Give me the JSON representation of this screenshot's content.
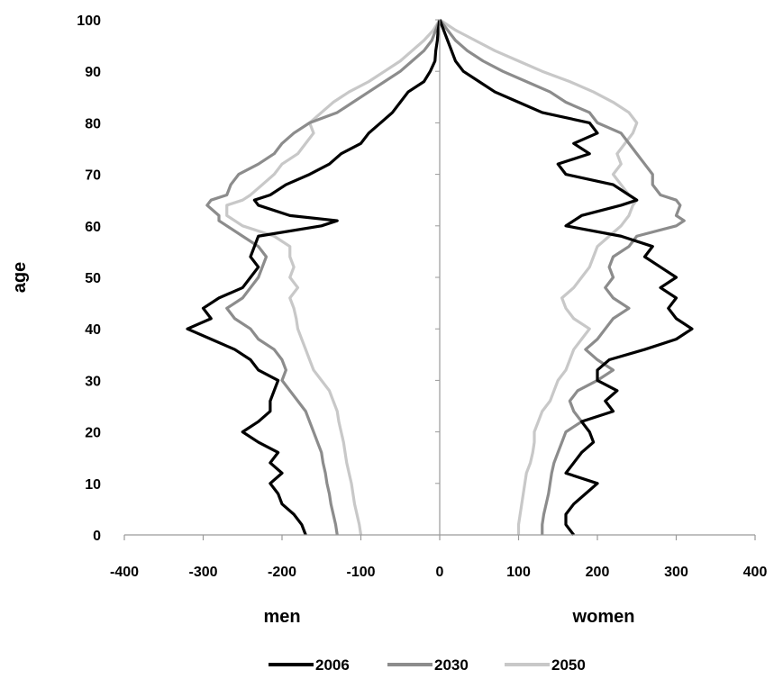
{
  "chart_data": {
    "type": "line",
    "title": "",
    "ylabel": "age",
    "xlabel_left": "men",
    "xlabel_right": "women",
    "xlim": [
      -400,
      400
    ],
    "ylim": [
      0,
      100
    ],
    "x_ticks": [
      "-400",
      "-300",
      "-200",
      "-100",
      "0",
      "100",
      "200",
      "300",
      "400"
    ],
    "y_ticks": [
      "0",
      "10",
      "20",
      "30",
      "40",
      "50",
      "60",
      "70",
      "80",
      "90",
      "100"
    ],
    "grid": false,
    "legend_position": "bottom",
    "ages": [
      0,
      2,
      4,
      6,
      8,
      10,
      12,
      14,
      16,
      18,
      20,
      22,
      24,
      26,
      28,
      30,
      32,
      34,
      36,
      38,
      40,
      42,
      44,
      46,
      48,
      50,
      52,
      54,
      56,
      58,
      60,
      61,
      62,
      64,
      65,
      66,
      68,
      70,
      72,
      74,
      76,
      78,
      80,
      82,
      84,
      86,
      88,
      90,
      92,
      94,
      96,
      98,
      100
    ],
    "series": [
      {
        "name": "2006",
        "color": "#000000",
        "men": [
          -170,
          -175,
          -185,
          -200,
          -205,
          -215,
          -200,
          -215,
          -205,
          -230,
          -250,
          -230,
          -215,
          -215,
          -210,
          -205,
          -230,
          -240,
          -260,
          -290,
          -320,
          -290,
          -300,
          -280,
          -250,
          -240,
          -230,
          -240,
          -235,
          -230,
          -150,
          -130,
          -190,
          -230,
          -235,
          -215,
          -195,
          -165,
          -140,
          -125,
          -100,
          -90,
          -75,
          -60,
          -50,
          -40,
          -20,
          -12,
          -6,
          -5,
          -3,
          -2,
          0
        ],
        "women": [
          170,
          160,
          160,
          170,
          185,
          200,
          160,
          170,
          180,
          195,
          190,
          180,
          220,
          210,
          225,
          200,
          200,
          215,
          260,
          300,
          320,
          300,
          290,
          300,
          280,
          300,
          280,
          260,
          270,
          230,
          160,
          170,
          180,
          230,
          250,
          240,
          220,
          160,
          150,
          190,
          170,
          200,
          190,
          130,
          100,
          70,
          50,
          30,
          20,
          15,
          10,
          5,
          0
        ]
      },
      {
        "name": "2030",
        "color": "#8c8c8c",
        "men": [
          -130,
          -132,
          -135,
          -138,
          -140,
          -143,
          -145,
          -148,
          -150,
          -155,
          -160,
          -165,
          -170,
          -180,
          -190,
          -200,
          -195,
          -200,
          -210,
          -230,
          -240,
          -260,
          -270,
          -250,
          -240,
          -230,
          -225,
          -220,
          -230,
          -250,
          -270,
          -280,
          -280,
          -295,
          -290,
          -270,
          -265,
          -255,
          -230,
          -210,
          -200,
          -185,
          -165,
          -130,
          -110,
          -90,
          -70,
          -50,
          -35,
          -20,
          -10,
          -5,
          0
        ],
        "women": [
          130,
          130,
          132,
          135,
          138,
          140,
          142,
          145,
          150,
          155,
          160,
          180,
          170,
          165,
          175,
          200,
          220,
          200,
          185,
          200,
          210,
          220,
          240,
          220,
          210,
          220,
          215,
          220,
          240,
          250,
          300,
          310,
          300,
          305,
          300,
          280,
          270,
          270,
          260,
          250,
          240,
          230,
          200,
          190,
          160,
          140,
          110,
          80,
          55,
          35,
          20,
          10,
          0
        ]
      },
      {
        "name": "2050",
        "color": "#c8c8c8",
        "men": [
          -100,
          -102,
          -105,
          -108,
          -110,
          -112,
          -115,
          -118,
          -120,
          -122,
          -125,
          -128,
          -130,
          -135,
          -140,
          -150,
          -160,
          -165,
          -170,
          -175,
          -180,
          -182,
          -185,
          -190,
          -180,
          -190,
          -185,
          -190,
          -190,
          -210,
          -250,
          -260,
          -270,
          -270,
          -250,
          -240,
          -225,
          -210,
          -200,
          -180,
          -170,
          -160,
          -165,
          -150,
          -135,
          -115,
          -90,
          -70,
          -50,
          -35,
          -20,
          -8,
          0
        ],
        "women": [
          100,
          100,
          102,
          104,
          106,
          108,
          110,
          115,
          118,
          120,
          120,
          125,
          130,
          140,
          145,
          150,
          160,
          165,
          170,
          180,
          190,
          170,
          160,
          155,
          170,
          180,
          190,
          195,
          200,
          215,
          230,
          235,
          240,
          245,
          250,
          240,
          230,
          220,
          230,
          225,
          235,
          245,
          250,
          240,
          220,
          195,
          165,
          130,
          100,
          70,
          45,
          20,
          0
        ]
      }
    ]
  }
}
